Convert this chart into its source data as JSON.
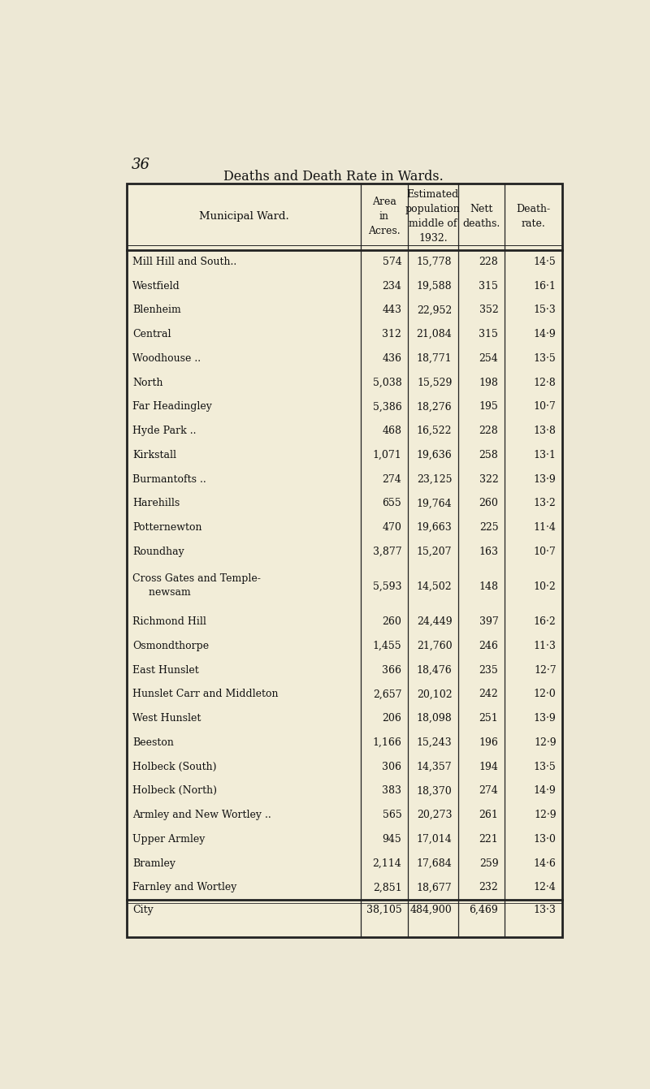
{
  "page_number": "36",
  "title": "Deaths and Death Rate in Wards.",
  "rows": [
    [
      "Mill Hill and South..",
      "574",
      "15,778",
      "228",
      "14·5"
    ],
    [
      "Westfield",
      "234",
      "19,588",
      "315",
      "16·1"
    ],
    [
      "Blenheim",
      "443",
      "22,952",
      "352",
      "15·3"
    ],
    [
      "Central",
      "312",
      "21,084",
      "315",
      "14·9"
    ],
    [
      "Woodhouse ..",
      "436",
      "18,771",
      "254",
      "13·5"
    ],
    [
      "North",
      "5,038",
      "15,529",
      "198",
      "12·8"
    ],
    [
      "Far Headingley",
      "5,386",
      "18,276",
      "195",
      "10·7"
    ],
    [
      "Hyde Park ..",
      "468",
      "16,522",
      "228",
      "13·8"
    ],
    [
      "Kirkstall",
      "1,071",
      "19,636",
      "258",
      "13·1"
    ],
    [
      "Burmantofts ..",
      "274",
      "23,125",
      "322",
      "13·9"
    ],
    [
      "Harehills",
      "655",
      "19,764",
      "260",
      "13·2"
    ],
    [
      "Potternewton",
      "470",
      "19,663",
      "225",
      "11·4"
    ],
    [
      "Roundhay",
      "3,877",
      "15,207",
      "163",
      "10·7"
    ],
    [
      "Cross Gates and Temple-",
      "5,593",
      "14,502",
      "148",
      "10·2"
    ],
    [
      "Richmond Hill",
      "260",
      "24,449",
      "397",
      "16·2"
    ],
    [
      "Osmondthorpe",
      "1,455",
      "21,760",
      "246",
      "11·3"
    ],
    [
      "East Hunslet",
      "366",
      "18,476",
      "235",
      "12·7"
    ],
    [
      "Hunslet Carr and Middleton",
      "2,657",
      "20,102",
      "242",
      "12·0"
    ],
    [
      "West Hunslet",
      "206",
      "18,098",
      "251",
      "13·9"
    ],
    [
      "Beeston",
      "1,166",
      "15,243",
      "196",
      "12·9"
    ],
    [
      "Holbeck (South)",
      "306",
      "14,357",
      "194",
      "13·5"
    ],
    [
      "Holbeck (North)",
      "383",
      "18,370",
      "274",
      "14·9"
    ],
    [
      "Armley and New Wortley ..",
      "565",
      "20,273",
      "261",
      "12·9"
    ],
    [
      "Upper Armley",
      "945",
      "17,014",
      "221",
      "13·0"
    ],
    [
      "Bramley",
      "2,114",
      "17,684",
      "259",
      "14·6"
    ],
    [
      "Farnley and Wortley",
      "2,851",
      "18,677",
      "232",
      "12·4"
    ]
  ],
  "cross_gates_second_line": "   newsam",
  "footer_row": [
    "City",
    "38,105",
    "484,900",
    "6,469",
    "13·3"
  ],
  "bg_color": "#ede8d5",
  "table_bg": "#f2edd8",
  "border_color": "#222222",
  "text_color": "#111111"
}
